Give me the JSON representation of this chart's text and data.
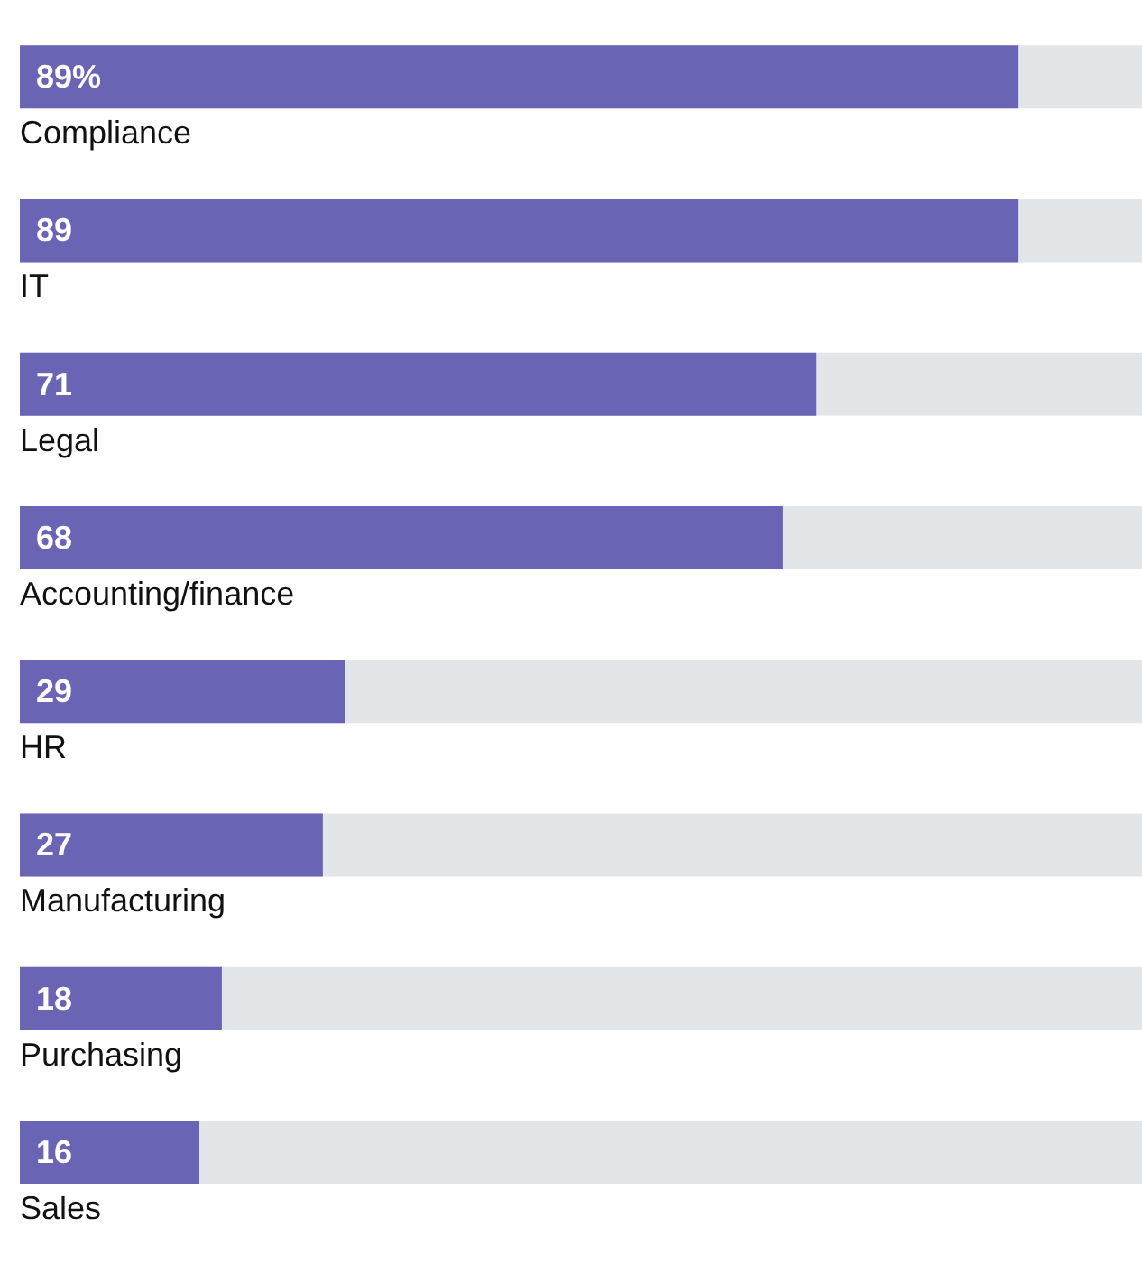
{
  "chart_data": {
    "type": "bar",
    "orientation": "horizontal",
    "categories": [
      "Compliance",
      "IT",
      "Legal",
      "Accounting/finance",
      "HR",
      "Manufacturing",
      "Purchasing",
      "Sales"
    ],
    "values": [
      89,
      89,
      71,
      68,
      29,
      27,
      18,
      16
    ],
    "value_labels": [
      "89%",
      "89",
      "71",
      "68",
      "29",
      "27",
      "18",
      "16"
    ],
    "color": "#6a64b4",
    "xlim": [
      0,
      100
    ],
    "tick_labels": false
  }
}
